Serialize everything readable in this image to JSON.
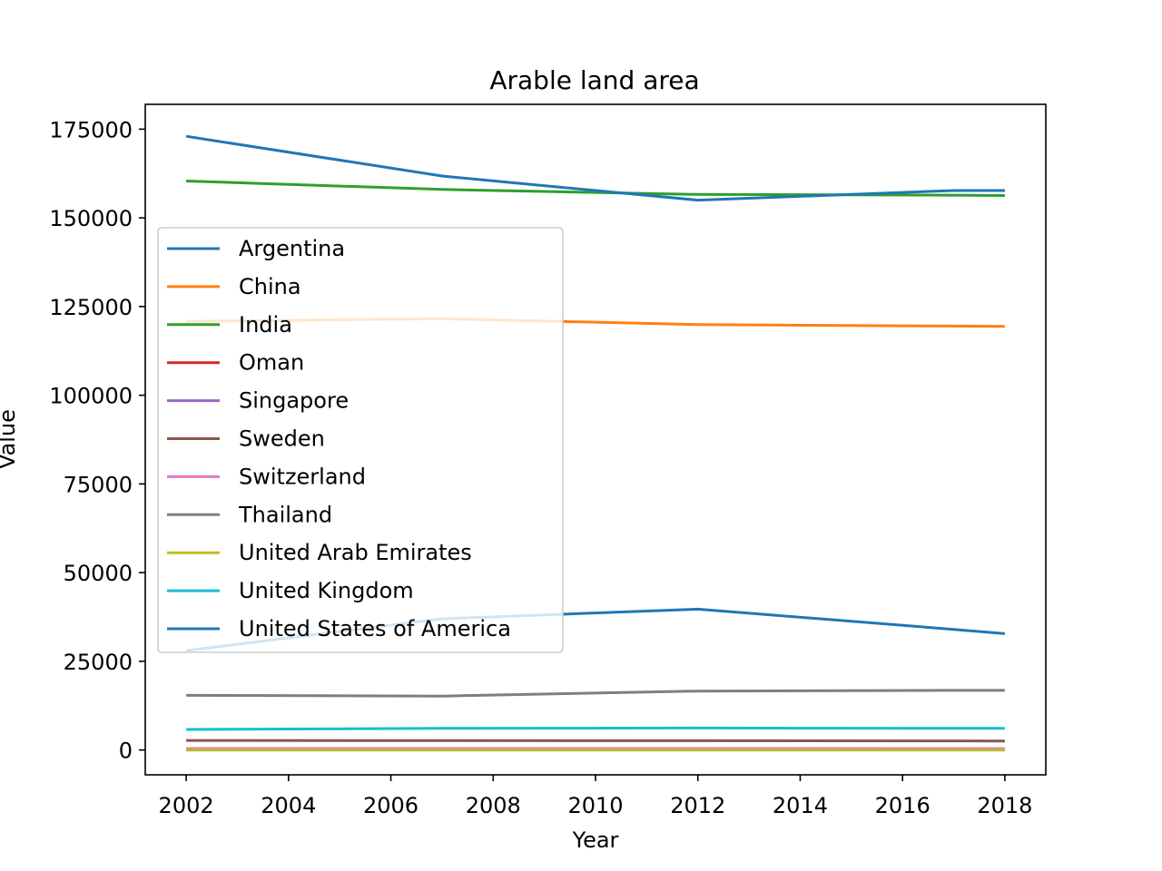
{
  "chart_data": {
    "type": "line",
    "title": "Arable land area",
    "xlabel": "Year",
    "ylabel": "Value",
    "xlim": [
      2001.2,
      2018.8
    ],
    "ylim": [
      -7000,
      182000
    ],
    "xticks": [
      2002,
      2004,
      2006,
      2008,
      2010,
      2012,
      2014,
      2016,
      2018
    ],
    "yticks": [
      0,
      25000,
      50000,
      75000,
      100000,
      125000,
      150000,
      175000
    ],
    "x": [
      2002,
      2007,
      2012,
      2017,
      2018
    ],
    "legend_position": "center-left",
    "grid": false,
    "series": [
      {
        "name": "Argentina",
        "color": "#1f77b4",
        "values": [
          28000,
          37000,
          39700,
          34000,
          32800
        ]
      },
      {
        "name": "China",
        "color": "#ff7f0e",
        "values": [
          120800,
          121600,
          119900,
          119500,
          119400
        ]
      },
      {
        "name": "India",
        "color": "#2ca02c",
        "values": [
          160400,
          158000,
          156600,
          156400,
          156300
        ]
      },
      {
        "name": "Oman",
        "color": "#d62728",
        "values": [
          60,
          60,
          60,
          60,
          60
        ]
      },
      {
        "name": "Singapore",
        "color": "#9467bd",
        "values": [
          1,
          1,
          1,
          1,
          1
        ]
      },
      {
        "name": "Sweden",
        "color": "#8c564b",
        "values": [
          2700,
          2650,
          2610,
          2560,
          2550
        ]
      },
      {
        "name": "Switzerland",
        "color": "#e377c2",
        "values": [
          410,
          410,
          405,
          400,
          400
        ]
      },
      {
        "name": "Thailand",
        "color": "#7f7f7f",
        "values": [
          15400,
          15200,
          16600,
          16800,
          16810
        ]
      },
      {
        "name": "United Arab Emirates",
        "color": "#bcbd22",
        "values": [
          70,
          60,
          50,
          40,
          40
        ]
      },
      {
        "name": "United Kingdom",
        "color": "#17becf",
        "values": [
          5800,
          6100,
          6200,
          6100,
          6100
        ]
      },
      {
        "name": "United States of America",
        "color": "#1f77b4",
        "values": [
          173000,
          161800,
          155000,
          157700,
          157700
        ]
      }
    ]
  }
}
